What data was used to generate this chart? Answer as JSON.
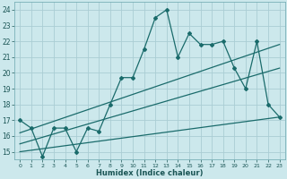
{
  "xlabel": "Humidex (Indice chaleur)",
  "bg_color": "#cce8ec",
  "grid_color": "#aacdd4",
  "line_color": "#1a6b6b",
  "xlim": [
    -0.5,
    23.5
  ],
  "ylim": [
    14.5,
    24.5
  ],
  "yticks": [
    15,
    16,
    17,
    18,
    19,
    20,
    21,
    22,
    23,
    24
  ],
  "xticks": [
    0,
    1,
    2,
    3,
    4,
    5,
    6,
    7,
    8,
    9,
    10,
    11,
    12,
    13,
    14,
    15,
    16,
    17,
    18,
    19,
    20,
    21,
    22,
    23
  ],
  "series1_x": [
    0,
    1,
    2,
    3,
    4,
    5,
    6,
    7,
    8,
    9,
    10,
    11,
    12,
    13,
    14,
    15,
    16,
    17,
    18,
    19,
    20,
    21,
    22,
    23
  ],
  "series1_y": [
    17.0,
    16.5,
    14.7,
    16.5,
    16.5,
    15.0,
    16.5,
    16.3,
    18.0,
    19.7,
    19.7,
    21.5,
    23.5,
    24.0,
    21.0,
    22.5,
    21.8,
    21.8,
    22.0,
    20.3,
    19.0,
    22.0,
    18.0,
    17.2
  ],
  "trend1_x": [
    0,
    23
  ],
  "trend1_y": [
    16.2,
    21.8
  ],
  "trend2_x": [
    0,
    23
  ],
  "trend2_y": [
    15.5,
    20.3
  ],
  "trend3_x": [
    0,
    23
  ],
  "trend3_y": [
    15.0,
    17.2
  ]
}
